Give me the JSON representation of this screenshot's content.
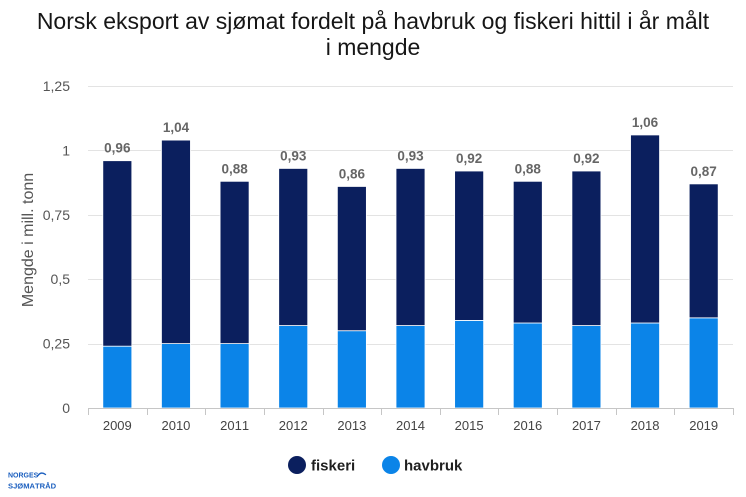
{
  "logo": {
    "line1": "NORGES",
    "line2": "SJØMATRÅD"
  },
  "chart_data": {
    "type": "bar",
    "stacked": true,
    "title": "Norsk eksport av sjømat fordelt på havbruk og fiskeri hittil i år målt i mengde",
    "xlabel": "",
    "ylabel": "Mengde i mill. tonn",
    "ylim": [
      0,
      1.25
    ],
    "yticks": [
      {
        "value": 0,
        "label": "0"
      },
      {
        "value": 0.25,
        "label": "0,25"
      },
      {
        "value": 0.5,
        "label": "0,5"
      },
      {
        "value": 0.75,
        "label": "0,75"
      },
      {
        "value": 1,
        "label": "1"
      },
      {
        "value": 1.25,
        "label": "1,25"
      }
    ],
    "categories": [
      "2009",
      "2010",
      "2011",
      "2012",
      "2013",
      "2014",
      "2015",
      "2016",
      "2017",
      "2018",
      "2019"
    ],
    "series": [
      {
        "name": "fiskeri",
        "color": "#0b1f5e",
        "values": [
          0.72,
          0.79,
          0.63,
          0.61,
          0.56,
          0.61,
          0.58,
          0.55,
          0.6,
          0.73,
          0.52
        ]
      },
      {
        "name": "havbruk",
        "color": "#0b84e8",
        "values": [
          0.24,
          0.25,
          0.25,
          0.32,
          0.3,
          0.32,
          0.34,
          0.33,
          0.32,
          0.33,
          0.35
        ]
      }
    ],
    "total_labels": [
      "0,96",
      "1,04",
      "0,88",
      "0,93",
      "0,86",
      "0,93",
      "0,92",
      "0,88",
      "0,92",
      "1,06",
      "0,87"
    ],
    "grid": true,
    "legend": "bottom-center"
  }
}
